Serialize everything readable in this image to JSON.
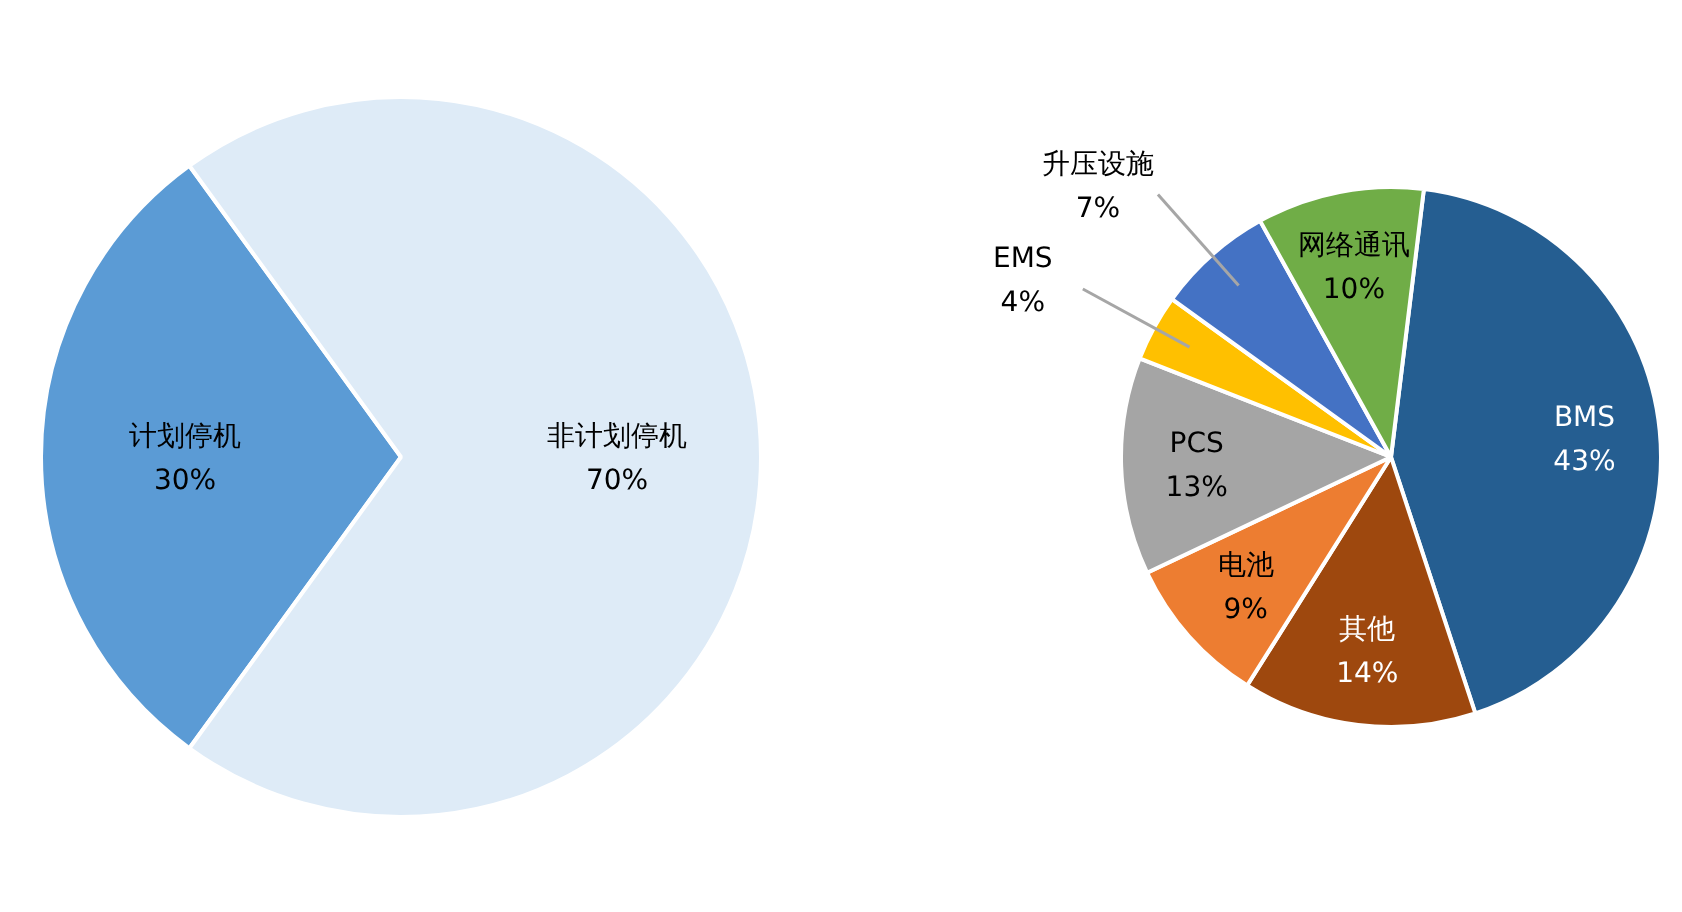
{
  "chart_data": [
    {
      "type": "pie",
      "categories": [
        "计划停机",
        "非计划停机"
      ],
      "values": [
        30,
        70
      ],
      "value_labels": [
        "30%",
        "70%"
      ],
      "colors": [
        "#5b9bd5",
        "#deebf7"
      ]
    },
    {
      "type": "pie",
      "categories": [
        "BMS",
        "其他",
        "电池",
        "PCS",
        "EMS",
        "升压设施",
        "网络通讯"
      ],
      "values": [
        43,
        14,
        9,
        13,
        4,
        7,
        10
      ],
      "value_labels": [
        "43%",
        "14%",
        "9%",
        "13%",
        "4%",
        "7%",
        "10%"
      ],
      "colors": [
        "#255e91",
        "#9e480e",
        "#ed7d31",
        "#a5a5a5",
        "#ffc000",
        "#4472c4",
        "#70ad47"
      ]
    }
  ]
}
